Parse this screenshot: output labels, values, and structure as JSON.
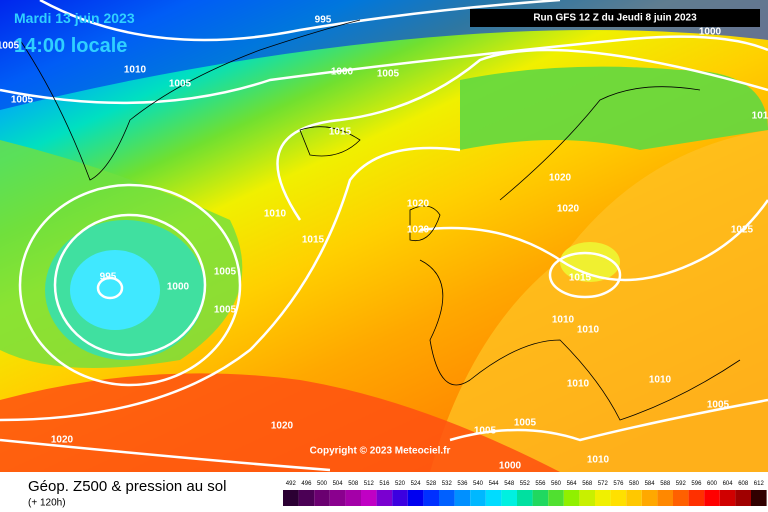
{
  "header": {
    "date": "Mardi 13 juin 2023",
    "time": "14:00 locale",
    "run": "Run GFS 12 Z du Jeudi 8 juin 2023"
  },
  "copyright": "Copyright © 2023 Meteociel.fr",
  "footer": {
    "title": "Géop. Z500 & pression au sol",
    "lead": "(+ 120h)"
  },
  "isobar_labels": [
    "995",
    "1005",
    "1010",
    "1000",
    "1005",
    "1005",
    "1005",
    "1015",
    "1000",
    "101",
    "1020",
    "1020",
    "1020",
    "1020",
    "1010",
    "1015",
    "1005",
    "995",
    "1000",
    "1005",
    "1025",
    "1015",
    "1010",
    "1010",
    "1010",
    "1010",
    "1005",
    "1020",
    "1020",
    "1005",
    "1005",
    "1000",
    "1010"
  ],
  "legend": {
    "labels": [
      492,
      496,
      500,
      504,
      508,
      512,
      516,
      520,
      524,
      528,
      532,
      536,
      540,
      544,
      548,
      552,
      556,
      560,
      564,
      568,
      572,
      576,
      580,
      584,
      588,
      592,
      596,
      600,
      604,
      608,
      612
    ],
    "colors": [
      "#2b0033",
      "#4b0055",
      "#6a0070",
      "#8a008e",
      "#a400a8",
      "#c000c4",
      "#7a00d0",
      "#3c00e0",
      "#0000f0",
      "#0030ff",
      "#0060ff",
      "#0090ff",
      "#00b8ff",
      "#00dcff",
      "#00f0e0",
      "#00e0a0",
      "#20d860",
      "#50e030",
      "#90f000",
      "#c8f000",
      "#f0f000",
      "#ffe000",
      "#ffc800",
      "#ffa800",
      "#ff8800",
      "#ff6000",
      "#ff3000",
      "#ff0000",
      "#d00000",
      "#a00000",
      "#300000"
    ]
  }
}
